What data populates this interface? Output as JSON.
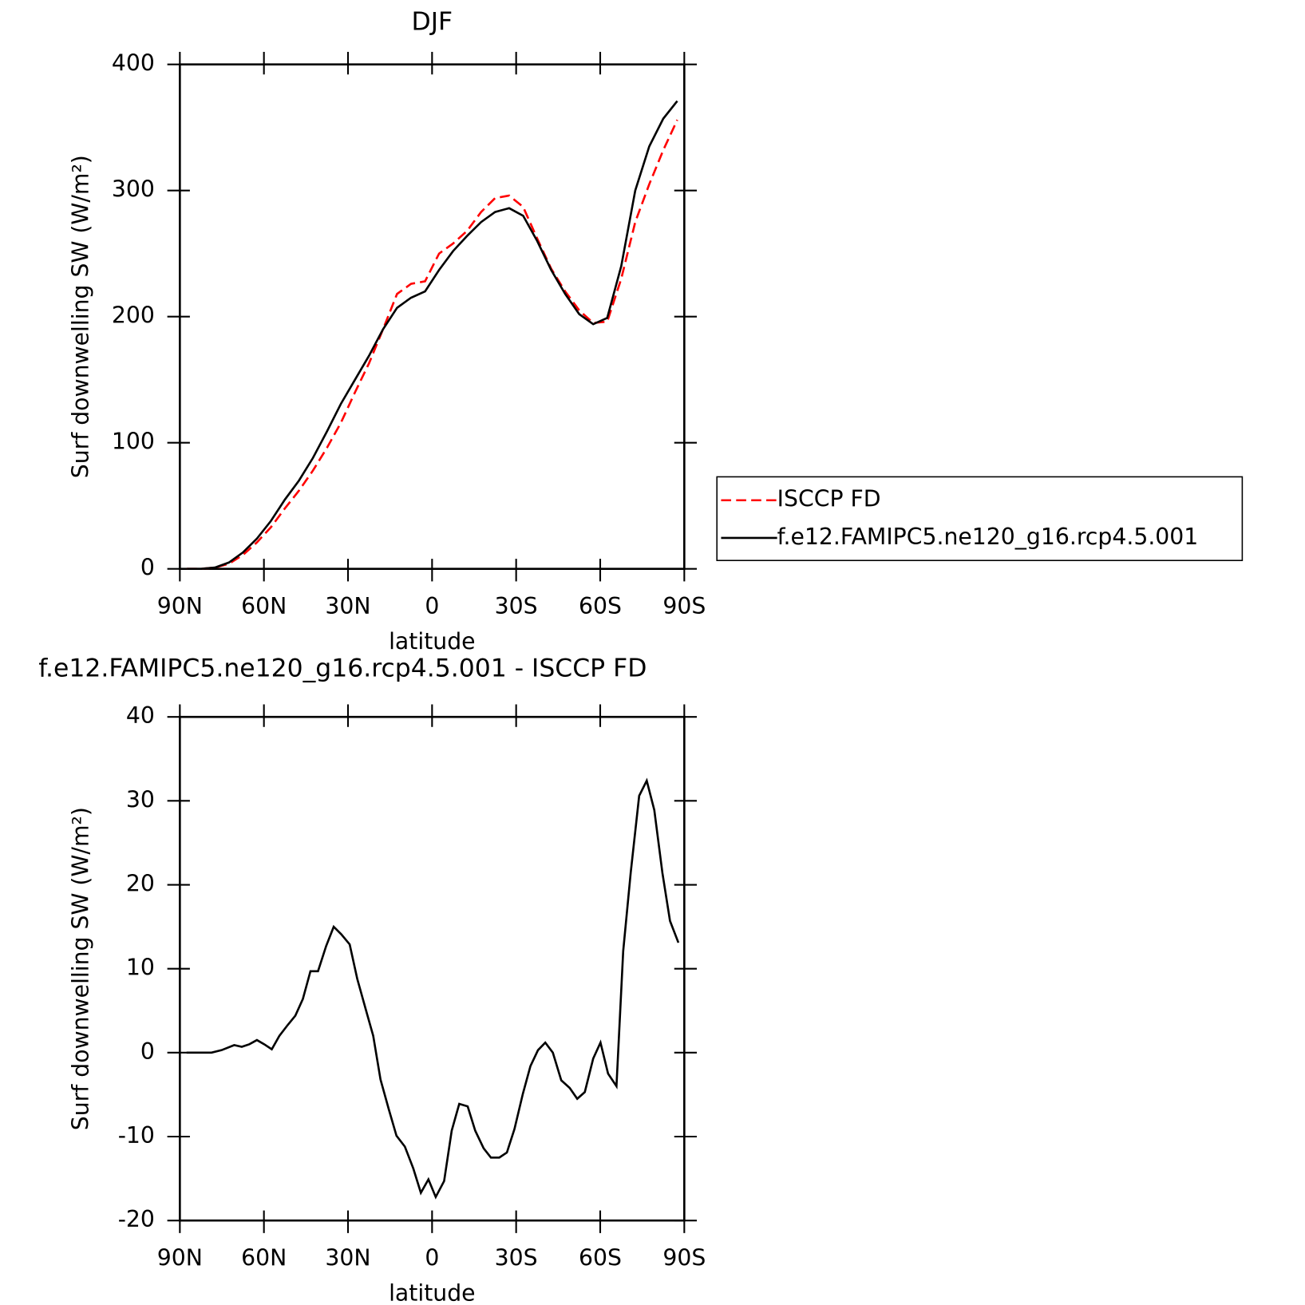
{
  "chart_data": [
    {
      "type": "line",
      "title": "DJF",
      "xlabel": "latitude",
      "ylabel": "Surf downwelling SW (W/m²)",
      "xlim": [
        90,
        -90
      ],
      "xticks": [
        {
          "value": 90,
          "label": "90N"
        },
        {
          "value": 60,
          "label": "60N"
        },
        {
          "value": 30,
          "label": "30N"
        },
        0,
        {
          "value": -30,
          "label": "30S"
        },
        {
          "value": -60,
          "label": "60S"
        },
        {
          "value": -90,
          "label": "90S"
        }
      ],
      "ylim": [
        0,
        400
      ],
      "yticks": [
        0,
        100,
        200,
        300,
        400
      ],
      "legend": "right",
      "x": [
        87.5,
        82.5,
        77.5,
        72.5,
        67.5,
        62.5,
        57.5,
        52.5,
        47.5,
        42.5,
        37.5,
        32.5,
        27.5,
        22.5,
        17.5,
        12.5,
        7.5,
        2.5,
        -2.5,
        -7.5,
        -12.5,
        -17.5,
        -22.5,
        -27.5,
        -32.5,
        -37.5,
        -42.5,
        -47.5,
        -52.5,
        -57.5,
        -62.5,
        -67.5,
        -72.5,
        -77.5,
        -82.5,
        -87.5
      ],
      "series": [
        {
          "name": "ISCCP FD",
          "color": "#ff0000",
          "dash": "dashed",
          "values": [
            0,
            0,
            1,
            4,
            11,
            21,
            33,
            48,
            62,
            78,
            96,
            116,
            140,
            163,
            190,
            218,
            226,
            228,
            250,
            258,
            268,
            283,
            294,
            296,
            287,
            262,
            238,
            220,
            205,
            195,
            196,
            230,
            275,
            305,
            332,
            356
          ]
        },
        {
          "name": "f.e12.FAMIPC5.ne120_g16.rcp4.5.001",
          "color": "#000000",
          "dash": "solid",
          "values": [
            0,
            0,
            1,
            5,
            13,
            24,
            38,
            55,
            70,
            88,
            109,
            131,
            150,
            169,
            190,
            207,
            215,
            220,
            237,
            252,
            264,
            275,
            283,
            286,
            280,
            260,
            237,
            218,
            202,
            194,
            199,
            240,
            300,
            335,
            357,
            371
          ]
        }
      ]
    },
    {
      "type": "line",
      "title": "f.e12.FAMIPC5.ne120_g16.rcp4.5.001 - ISCCP FD",
      "xlabel": "latitude",
      "ylabel": "Surf downwelling SW (W/m²)",
      "xlim": [
        90,
        -90
      ],
      "xticks": [
        {
          "value": 90,
          "label": "90N"
        },
        {
          "value": 60,
          "label": "60N"
        },
        {
          "value": 30,
          "label": "30N"
        },
        0,
        {
          "value": -30,
          "label": "30S"
        },
        {
          "value": -60,
          "label": "60S"
        },
        {
          "value": -90,
          "label": "90S"
        }
      ],
      "ylim": [
        -20,
        40
      ],
      "yticks": [
        -20,
        -10,
        0,
        10,
        20,
        30,
        40
      ],
      "x": [
        87.6,
        78.7,
        75.1,
        70.6,
        67.9,
        65.2,
        62.5,
        59.9,
        57.2,
        54.5,
        51.5,
        48.8,
        46.1,
        43.4,
        40.7,
        37.8,
        35.1,
        32.4,
        29.4,
        26.7,
        23.7,
        21,
        18.4,
        15.4,
        12.7,
        9.7,
        6.7,
        4,
        1.3,
        -1.3,
        -4.3,
        -7,
        -9.7,
        -12.7,
        -15.4,
        -18.4,
        -21,
        -24,
        -26.7,
        -29.4,
        -32.4,
        -35.1,
        -37.8,
        -40.4,
        -43.1,
        -46.1,
        -49.1,
        -51.8,
        -54.5,
        -57.5,
        -60.1,
        -62.8,
        -65.8,
        -68.2,
        -70.9,
        -73.9,
        -76.6,
        -79.3,
        -82.2,
        -84.9,
        -87.9
      ],
      "series": [
        {
          "color": "#000000",
          "dash": "solid",
          "values": [
            0,
            0,
            0.3,
            0.9,
            0.7,
            1,
            1.5,
            1,
            0.4,
            2,
            3.3,
            4.4,
            6.4,
            9.7,
            9.7,
            12.7,
            15,
            14.1,
            12.9,
            8.8,
            5.2,
            2,
            -3.2,
            -6.8,
            -9.9,
            -11.2,
            -13.8,
            -16.7,
            -15.1,
            -17.2,
            -15.3,
            -9.3,
            -6.1,
            -6.4,
            -9.3,
            -11.4,
            -12.5,
            -12.5,
            -11.9,
            -9.1,
            -4.9,
            -1.6,
            0.3,
            1.2,
            0,
            -3.3,
            -4.2,
            -5.5,
            -4.7,
            -0.7,
            1.2,
            -2.5,
            -4,
            12.1,
            21.5,
            30.6,
            32.4,
            28.9,
            21.4,
            15.7,
            13.1
          ]
        }
      ]
    }
  ]
}
